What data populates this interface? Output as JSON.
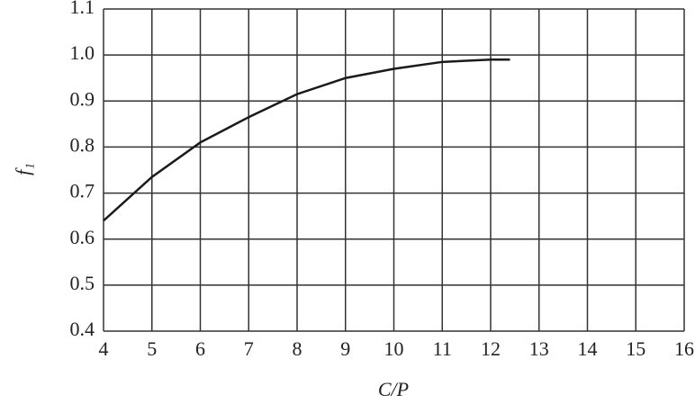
{
  "chart_data": {
    "type": "line",
    "xlabel": "C/P",
    "ylabel": "f₁",
    "x": [
      4,
      5,
      6,
      7,
      8,
      9,
      10,
      11,
      12,
      12.4
    ],
    "series": [
      {
        "color": "#1a1a1a",
        "values": [
          0.64,
          0.735,
          0.81,
          0.865,
          0.915,
          0.95,
          0.97,
          0.985,
          0.99,
          0.99
        ]
      }
    ],
    "xlim": [
      4,
      16
    ],
    "xticks": [
      4,
      5,
      6,
      7,
      8,
      9,
      10,
      11,
      12,
      13,
      14,
      15,
      16
    ],
    "ylim": [
      0.4,
      1.1
    ],
    "yticks": [
      0.4,
      0.5,
      0.6,
      0.7,
      0.8,
      0.9,
      {
        "value": 1,
        "label": "1.0"
      },
      1.1
    ],
    "grid": true
  }
}
